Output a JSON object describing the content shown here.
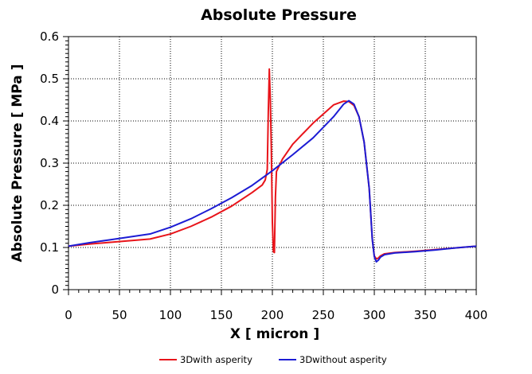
{
  "chart_data": {
    "type": "line",
    "title": "Absolute Pressure",
    "xlabel": "X [ micron ]",
    "ylabel": "Absolute Pressure [ MPa ]",
    "xlim": [
      0,
      400
    ],
    "ylim": [
      0,
      0.6
    ],
    "xticks": [
      "0",
      "50",
      "100",
      "150",
      "200",
      "250",
      "300",
      "350",
      "400"
    ],
    "yticks": [
      "0",
      "0.1",
      "0.2",
      "0.3",
      "0.4",
      "0.5",
      "0.6"
    ],
    "grid": true,
    "legend_position": "bottom",
    "series": [
      {
        "name": "3Dwith asperity",
        "color": "#e8141a",
        "x": [
          0,
          20,
          40,
          60,
          80,
          100,
          120,
          140,
          160,
          180,
          190,
          193,
          195,
          196,
          197,
          198,
          199,
          200,
          201,
          202,
          203,
          204,
          206,
          210,
          220,
          240,
          260,
          270,
          275,
          280,
          285,
          290,
          295,
          298,
          300,
          302,
          304,
          306,
          310,
          320,
          340,
          360,
          380,
          400
        ],
        "y": [
          0.103,
          0.108,
          0.112,
          0.116,
          0.12,
          0.132,
          0.15,
          0.172,
          0.198,
          0.23,
          0.248,
          0.26,
          0.285,
          0.42,
          0.523,
          0.45,
          0.33,
          0.16,
          0.09,
          0.088,
          0.22,
          0.28,
          0.29,
          0.31,
          0.345,
          0.395,
          0.438,
          0.447,
          0.446,
          0.437,
          0.41,
          0.35,
          0.24,
          0.12,
          0.08,
          0.073,
          0.075,
          0.08,
          0.085,
          0.088,
          0.091,
          0.095,
          0.099,
          0.103
        ]
      },
      {
        "name": "3Dwithout asperity",
        "color": "#1c1cd4",
        "x": [
          0,
          20,
          40,
          60,
          80,
          100,
          120,
          140,
          160,
          180,
          200,
          220,
          240,
          260,
          270,
          275,
          280,
          285,
          290,
          295,
          298,
          300,
          302,
          304,
          306,
          310,
          320,
          340,
          360,
          380,
          400
        ],
        "y": [
          0.103,
          0.111,
          0.118,
          0.125,
          0.132,
          0.148,
          0.168,
          0.192,
          0.218,
          0.247,
          0.282,
          0.32,
          0.36,
          0.41,
          0.44,
          0.448,
          0.44,
          0.41,
          0.35,
          0.24,
          0.12,
          0.078,
          0.066,
          0.07,
          0.077,
          0.083,
          0.087,
          0.09,
          0.094,
          0.099,
          0.103
        ]
      }
    ]
  }
}
